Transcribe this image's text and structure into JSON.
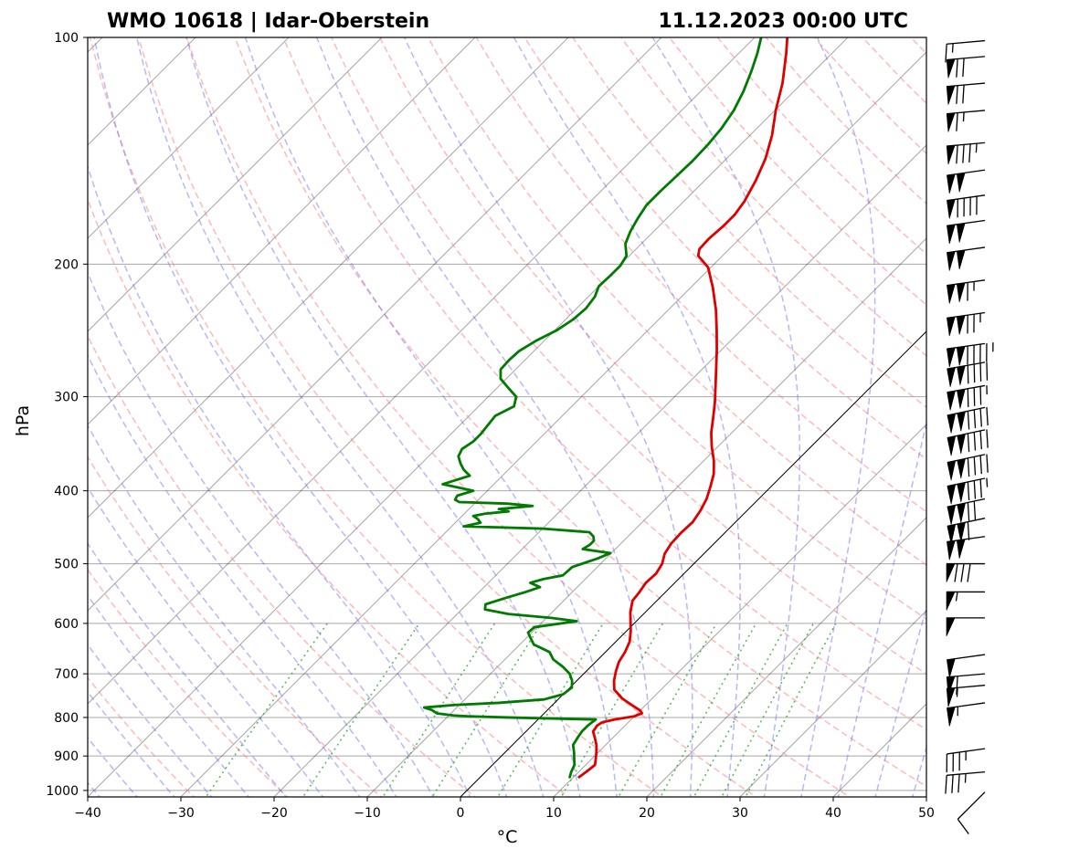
{
  "chart_data": {
    "type": "skew-t",
    "title_left": "WMO 10618 | Idar-Oberstein",
    "title_right": "11.12.2023 00:00 UTC",
    "xlabel": "°C",
    "ylabel": "hPa",
    "xlim": [
      -40,
      50
    ],
    "ylim": [
      1020,
      100
    ],
    "x_ticks": [
      -40,
      -30,
      -20,
      -10,
      0,
      10,
      20,
      30,
      40,
      50
    ],
    "x_tick_labels": [
      "−40",
      "−30",
      "−20",
      "−10",
      "0",
      "10",
      "20",
      "30",
      "40",
      "50"
    ],
    "y_ticks": [
      100,
      200,
      300,
      400,
      500,
      600,
      700,
      800,
      900,
      1000
    ],
    "y_tick_labels": [
      "100",
      "200",
      "300",
      "400",
      "500",
      "600",
      "700",
      "800",
      "900",
      "1000"
    ],
    "grid": true,
    "colors": {
      "temperature": "#dd0000",
      "dewpoint": "#007a00",
      "dry_adiabat": "#ff8080",
      "moist_adiabat": "#7070ff",
      "mixing_ratio": "#33aa33",
      "isotherm": "#000000",
      "grid": "#a8a8a8"
    },
    "series": [
      {
        "name": "Temperature",
        "points": [
          [
            960,
            10.6
          ],
          [
            945,
            10.8
          ],
          [
            925,
            11.0
          ],
          [
            910,
            10.5
          ],
          [
            890,
            9.8
          ],
          [
            870,
            9.0
          ],
          [
            850,
            8.0
          ],
          [
            835,
            7.2
          ],
          [
            820,
            7.0
          ],
          [
            812,
            7.2
          ],
          [
            805,
            8.2
          ],
          [
            797,
            10.0
          ],
          [
            790,
            10.5
          ],
          [
            783,
            10.0
          ],
          [
            770,
            8.5
          ],
          [
            755,
            6.8
          ],
          [
            735,
            5.0
          ],
          [
            715,
            4.0
          ],
          [
            695,
            3.2
          ],
          [
            675,
            2.5
          ],
          [
            655,
            2.1
          ],
          [
            635,
            1.5
          ],
          [
            615,
            0.5
          ],
          [
            598,
            -0.5
          ],
          [
            580,
            -1.6
          ],
          [
            560,
            -2.6
          ],
          [
            545,
            -2.8
          ],
          [
            530,
            -3.1
          ],
          [
            515,
            -3.0
          ],
          [
            500,
            -3.4
          ],
          [
            485,
            -4.2
          ],
          [
            470,
            -4.6
          ],
          [
            455,
            -4.7
          ],
          [
            440,
            -4.6
          ],
          [
            425,
            -5.0
          ],
          [
            410,
            -5.6
          ],
          [
            395,
            -6.5
          ],
          [
            380,
            -7.5
          ],
          [
            365,
            -8.9
          ],
          [
            350,
            -10.6
          ],
          [
            335,
            -12.2
          ],
          [
            320,
            -13.6
          ],
          [
            305,
            -15.1
          ],
          [
            290,
            -16.8
          ],
          [
            275,
            -18.6
          ],
          [
            260,
            -20.5
          ],
          [
            245,
            -22.6
          ],
          [
            230,
            -24.9
          ],
          [
            215,
            -27.6
          ],
          [
            202,
            -30.3
          ],
          [
            195,
            -32.6
          ],
          [
            191,
            -33.2
          ],
          [
            185,
            -33.3
          ],
          [
            178,
            -33.1
          ],
          [
            172,
            -33.1
          ],
          [
            165,
            -33.5
          ],
          [
            155,
            -34.5
          ],
          [
            145,
            -35.8
          ],
          [
            135,
            -37.6
          ],
          [
            125,
            -39.9
          ],
          [
            115,
            -42.1
          ],
          [
            105,
            -44.9
          ],
          [
            100,
            -46.5
          ]
        ]
      },
      {
        "name": "Dewpoint",
        "points": [
          [
            960,
            9.6
          ],
          [
            945,
            9.2
          ],
          [
            925,
            8.8
          ],
          [
            910,
            8.2
          ],
          [
            890,
            7.4
          ],
          [
            870,
            6.5
          ],
          [
            850,
            6.2
          ],
          [
            835,
            6.0
          ],
          [
            820,
            6.0
          ],
          [
            812,
            6.1
          ],
          [
            805,
            6.2
          ],
          [
            800,
            -3.5
          ],
          [
            797,
            -8.0
          ],
          [
            795,
            -9.5
          ],
          [
            790,
            -11.5
          ],
          [
            782,
            -12.4
          ],
          [
            776,
            -13.5
          ],
          [
            770,
            -10.5
          ],
          [
            765,
            -6.0
          ],
          [
            757,
            -1.5
          ],
          [
            745,
            0.0
          ],
          [
            730,
            0.2
          ],
          [
            715,
            -0.5
          ],
          [
            700,
            -1.5
          ],
          [
            685,
            -3.0
          ],
          [
            670,
            -4.8
          ],
          [
            655,
            -6.0
          ],
          [
            640,
            -8.5
          ],
          [
            628,
            -9.5
          ],
          [
            617,
            -10.4
          ],
          [
            607,
            -10.3
          ],
          [
            596,
            -6.4
          ],
          [
            590,
            -9.5
          ],
          [
            583,
            -14.5
          ],
          [
            575,
            -17.5
          ],
          [
            566,
            -18.0
          ],
          [
            555,
            -16.5
          ],
          [
            545,
            -15.0
          ],
          [
            537,
            -14.0
          ],
          [
            530,
            -15.5
          ],
          [
            524,
            -14.5
          ],
          [
            518,
            -12.8
          ],
          [
            505,
            -12.7
          ],
          [
            492,
            -10.9
          ],
          [
            484,
            -10.1
          ],
          [
            478,
            -13.5
          ],
          [
            472,
            -13.2
          ],
          [
            466,
            -13.2
          ],
          [
            460,
            -13.7
          ],
          [
            454,
            -14.6
          ],
          [
            449,
            -20.1
          ],
          [
            446,
            -28.7
          ],
          [
            441,
            -27.3
          ],
          [
            436,
            -28.0
          ],
          [
            432,
            -28.8
          ],
          [
            429,
            -27.8
          ],
          [
            426,
            -25.5
          ],
          [
            423,
            -26.8
          ],
          [
            419,
            -23.5
          ],
          [
            416,
            -26.5
          ],
          [
            414,
            -31.8
          ],
          [
            411,
            -32.5
          ],
          [
            406,
            -32.7
          ],
          [
            400,
            -31.5
          ],
          [
            396,
            -33.5
          ],
          [
            392,
            -35.5
          ],
          [
            387,
            -34.5
          ],
          [
            382,
            -33.5
          ],
          [
            375,
            -34.8
          ],
          [
            368,
            -35.8
          ],
          [
            360,
            -36.8
          ],
          [
            352,
            -37.2
          ],
          [
            344,
            -36.8
          ],
          [
            336,
            -36.8
          ],
          [
            327,
            -37.0
          ],
          [
            318,
            -37.2
          ],
          [
            309,
            -36.2
          ],
          [
            300,
            -37.0
          ],
          [
            292,
            -38.8
          ],
          [
            284,
            -40.6
          ],
          [
            276,
            -41.6
          ],
          [
            268,
            -41.7
          ],
          [
            261,
            -41.6
          ],
          [
            253,
            -40.9
          ],
          [
            245,
            -39.8
          ],
          [
            237,
            -39.2
          ],
          [
            229,
            -39.0
          ],
          [
            221,
            -39.3
          ],
          [
            214,
            -40.0
          ],
          [
            207,
            -39.9
          ],
          [
            201,
            -39.9
          ],
          [
            195,
            -40.3
          ],
          [
            188,
            -41.7
          ],
          [
            181,
            -42.5
          ],
          [
            174,
            -43.1
          ],
          [
            167,
            -43.6
          ],
          [
            160,
            -43.6
          ],
          [
            153,
            -43.5
          ],
          [
            146,
            -43.4
          ],
          [
            139,
            -43.5
          ],
          [
            132,
            -43.8
          ],
          [
            125,
            -44.4
          ],
          [
            118,
            -45.4
          ],
          [
            111,
            -46.7
          ],
          [
            105,
            -48.0
          ],
          [
            100,
            -49.3
          ]
        ]
      }
    ],
    "wind_barbs": [
      {
        "p": 1005,
        "speed_kt": 10,
        "dir_deg": 225
      },
      {
        "p": 945,
        "speed_kt": 35,
        "dir_deg": 265
      },
      {
        "p": 880,
        "speed_kt": 35,
        "dir_deg": 262
      },
      {
        "p": 765,
        "speed_kt": 55,
        "dir_deg": 262
      },
      {
        "p": 725,
        "speed_kt": 55,
        "dir_deg": 265
      },
      {
        "p": 700,
        "speed_kt": 60,
        "dir_deg": 265
      },
      {
        "p": 660,
        "speed_kt": 50,
        "dir_deg": 262
      },
      {
        "p": 590,
        "speed_kt": 50,
        "dir_deg": 270
      },
      {
        "p": 545,
        "speed_kt": 55,
        "dir_deg": 270
      },
      {
        "p": 500,
        "speed_kt": 80,
        "dir_deg": 270
      },
      {
        "p": 460,
        "speed_kt": 100,
        "dir_deg": 262
      },
      {
        "p": 435,
        "speed_kt": 110,
        "dir_deg": 258
      },
      {
        "p": 410,
        "speed_kt": 120,
        "dir_deg": 258
      },
      {
        "p": 385,
        "speed_kt": 135,
        "dir_deg": 258
      },
      {
        "p": 358,
        "speed_kt": 140,
        "dir_deg": 258
      },
      {
        "p": 332,
        "speed_kt": 140,
        "dir_deg": 258
      },
      {
        "p": 310,
        "speed_kt": 140,
        "dir_deg": 258
      },
      {
        "p": 290,
        "speed_kt": 135,
        "dir_deg": 260
      },
      {
        "p": 270,
        "speed_kt": 140,
        "dir_deg": 260
      },
      {
        "p": 255,
        "speed_kt": 145,
        "dir_deg": 262
      },
      {
        "p": 232,
        "speed_kt": 125,
        "dir_deg": 262
      },
      {
        "p": 210,
        "speed_kt": 115,
        "dir_deg": 262
      },
      {
        "p": 190,
        "speed_kt": 100,
        "dir_deg": 262
      },
      {
        "p": 175,
        "speed_kt": 100,
        "dir_deg": 262
      },
      {
        "p": 162,
        "speed_kt": 90,
        "dir_deg": 262
      },
      {
        "p": 150,
        "speed_kt": 100,
        "dir_deg": 262
      },
      {
        "p": 138,
        "speed_kt": 85,
        "dir_deg": 265
      },
      {
        "p": 125,
        "speed_kt": 65,
        "dir_deg": 265
      },
      {
        "p": 115,
        "speed_kt": 70,
        "dir_deg": 265
      },
      {
        "p": 106,
        "speed_kt": 70,
        "dir_deg": 265
      },
      {
        "p": 101,
        "speed_kt": 15,
        "dir_deg": 265
      }
    ]
  }
}
